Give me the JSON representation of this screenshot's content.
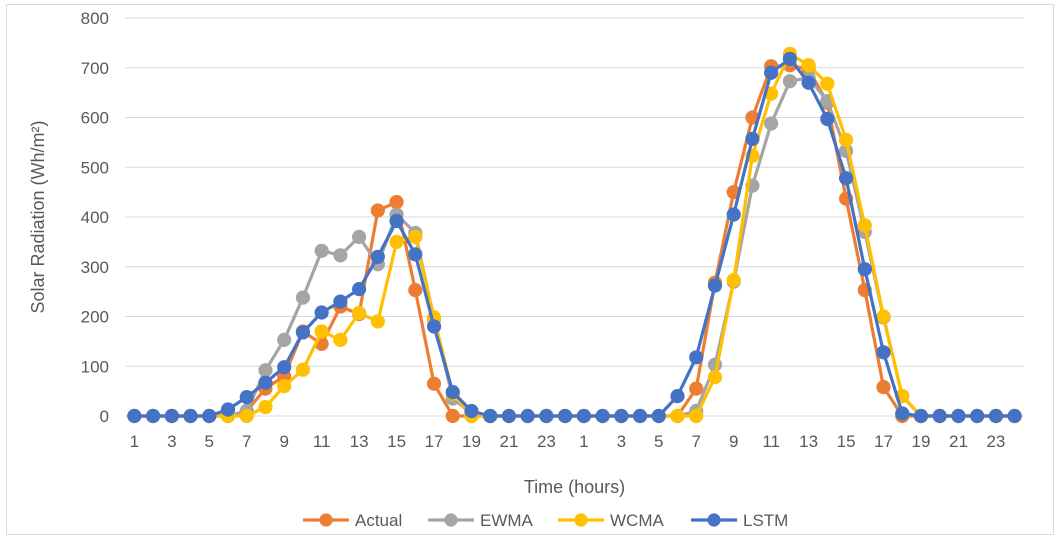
{
  "chart_data": {
    "type": "line",
    "title": "",
    "xlabel": "Time (hours)",
    "ylabel": "Solar Radiation (Wh/m²)",
    "ylim": [
      0,
      800
    ],
    "yticks": [
      0,
      100,
      200,
      300,
      400,
      500,
      600,
      700,
      800
    ],
    "grid": true,
    "legend": "bottom",
    "x": [
      1,
      2,
      3,
      4,
      5,
      6,
      7,
      8,
      9,
      10,
      11,
      12,
      13,
      14,
      15,
      16,
      17,
      18,
      19,
      20,
      21,
      22,
      23,
      24,
      1,
      2,
      3,
      4,
      5,
      6,
      7,
      8,
      9,
      10,
      11,
      12,
      13,
      14,
      15,
      16,
      17,
      18,
      19,
      20,
      21,
      22,
      23,
      24
    ],
    "x_tick_labels": [
      "1",
      "",
      "3",
      "",
      "5",
      "",
      "7",
      "",
      "9",
      "",
      "11",
      "",
      "13",
      "",
      "15",
      "",
      "17",
      "",
      "19",
      "",
      "21",
      "",
      "23",
      "",
      "1",
      "",
      "3",
      "",
      "5",
      "",
      "7",
      "",
      "9",
      "",
      "11",
      "",
      "13",
      "",
      "15",
      "",
      "17",
      "",
      "19",
      "",
      "21",
      "",
      "23",
      ""
    ],
    "series": [
      {
        "name": "Actual",
        "color": "#ED7D31",
        "values": [
          0,
          0,
          0,
          0,
          0,
          0,
          10,
          55,
          80,
          170,
          145,
          220,
          205,
          413,
          430,
          253,
          65,
          0,
          0,
          0,
          0,
          0,
          0,
          0,
          0,
          0,
          0,
          0,
          0,
          0,
          55,
          268,
          450,
          600,
          703,
          705,
          697,
          630,
          437,
          253,
          58,
          0,
          0,
          0,
          0,
          0,
          0,
          0
        ]
      },
      {
        "name": "EWMA",
        "color": "#A5A5A5",
        "values": [
          0,
          0,
          0,
          0,
          0,
          0,
          10,
          92,
          153,
          238,
          332,
          323,
          360,
          305,
          405,
          368,
          195,
          35,
          5,
          0,
          0,
          0,
          0,
          0,
          0,
          0,
          0,
          0,
          0,
          0,
          10,
          103,
          270,
          463,
          588,
          673,
          680,
          633,
          533,
          370,
          198,
          40,
          0,
          0,
          0,
          0,
          0,
          0
        ]
      },
      {
        "name": "WCMA",
        "color": "#FFC000",
        "values": [
          0,
          0,
          0,
          0,
          0,
          0,
          0,
          18,
          60,
          93,
          170,
          153,
          207,
          190,
          350,
          360,
          198,
          45,
          0,
          0,
          0,
          0,
          0,
          0,
          0,
          0,
          0,
          0,
          0,
          0,
          0,
          78,
          273,
          523,
          648,
          728,
          705,
          668,
          555,
          383,
          200,
          40,
          0,
          0,
          0,
          0,
          0,
          0
        ]
      },
      {
        "name": "LSTM",
        "color": "#4472C4",
        "values": [
          0,
          0,
          0,
          0,
          0,
          13,
          38,
          67,
          98,
          168,
          208,
          230,
          255,
          320,
          392,
          325,
          180,
          48,
          10,
          0,
          0,
          0,
          0,
          0,
          0,
          0,
          0,
          0,
          0,
          40,
          118,
          262,
          405,
          557,
          690,
          718,
          670,
          597,
          478,
          295,
          128,
          5,
          0,
          0,
          0,
          0,
          0,
          0
        ]
      }
    ]
  }
}
